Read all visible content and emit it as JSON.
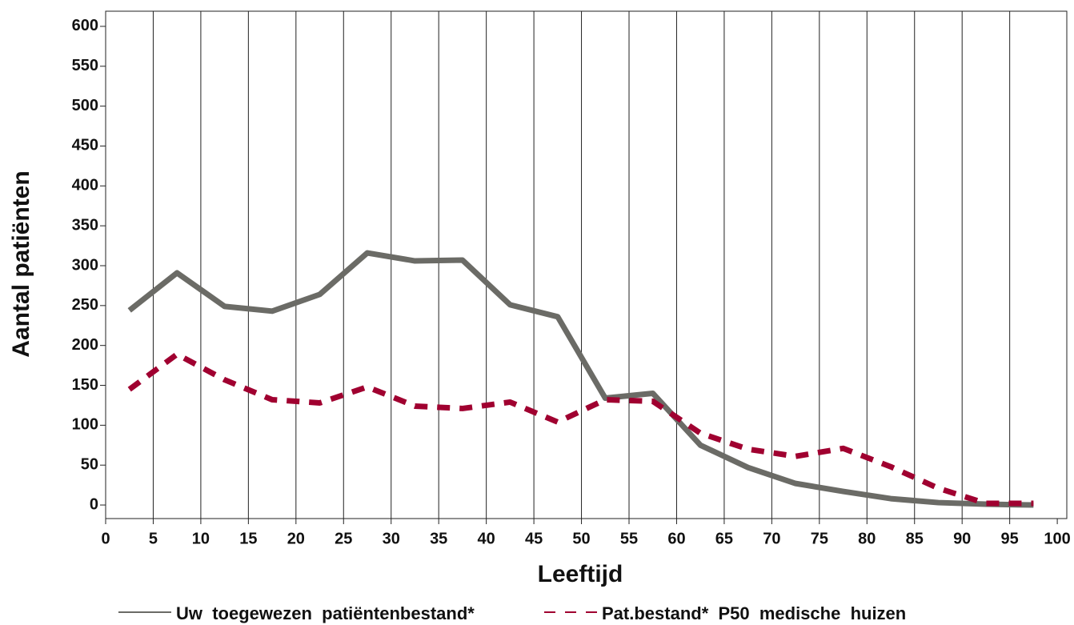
{
  "chart_data": {
    "type": "line",
    "x_label": "Leeftijd",
    "y_label": "Aantal patiënten",
    "x": [
      2.5,
      7.5,
      12.5,
      17.5,
      22.5,
      27.5,
      32.5,
      37.5,
      42.5,
      47.5,
      52.5,
      57.5,
      62.5,
      67.5,
      72.5,
      77.5,
      82.5,
      87.5,
      92.5,
      97.5
    ],
    "series": [
      {
        "name": "Uw  toegewezen  patiëntenbestand*",
        "color": "#6b6b66",
        "dash": false,
        "values": [
          244,
          291,
          249,
          243,
          264,
          316,
          306,
          307,
          251,
          236,
          134,
          140,
          75,
          47,
          27,
          17,
          8,
          3,
          1,
          0
        ]
      },
      {
        "name": "Pat.bestand*  P50  medische  huizen",
        "color": "#a00030",
        "dash": true,
        "values": [
          145,
          189,
          157,
          132,
          128,
          148,
          124,
          121,
          129,
          104,
          132,
          130,
          90,
          70,
          61,
          71,
          48,
          21,
          2,
          2
        ]
      }
    ],
    "xlim": [
      0,
      101
    ],
    "ylim": [
      -17,
      619
    ],
    "xticks": [
      0,
      5,
      10,
      15,
      20,
      25,
      30,
      35,
      40,
      45,
      50,
      55,
      60,
      65,
      70,
      75,
      80,
      85,
      90,
      95,
      100
    ],
    "yticks": [
      0,
      50,
      100,
      150,
      200,
      250,
      300,
      350,
      400,
      450,
      500,
      550,
      600
    ],
    "grid": "x",
    "legend": "bottom"
  }
}
